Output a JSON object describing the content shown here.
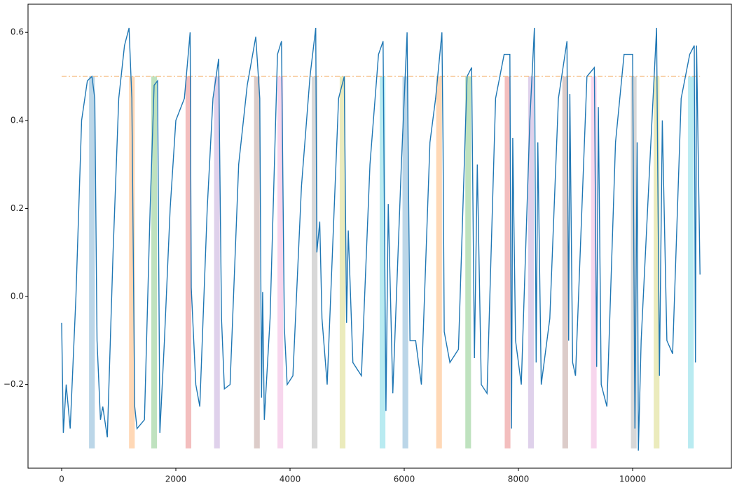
{
  "chart_data": {
    "type": "line",
    "xlim": [
      -589,
      11730
    ],
    "ylim": [
      -0.39,
      0.664
    ],
    "xticks": [
      0,
      2000,
      4000,
      6000,
      8000,
      10000
    ],
    "yticks": [
      {
        "value": -0.2,
        "label": "−0.2"
      },
      {
        "value": 0,
        "label": "0.0"
      },
      {
        "value": 0.2,
        "label": "0.2"
      },
      {
        "value": 0.4,
        "label": "0.4"
      },
      {
        "value": 0.6,
        "label": "0.6"
      }
    ],
    "threshold": {
      "y": 0.5,
      "color": "#f5b97a"
    },
    "span_y": [
      -0.345,
      0.5
    ],
    "spans": [
      {
        "x": [
          480,
          580
        ],
        "color": "#1f77b4"
      },
      {
        "x": [
          1180,
          1280
        ],
        "color": "#ff7f0e"
      },
      {
        "x": [
          1570,
          1670
        ],
        "color": "#2ca02c"
      },
      {
        "x": [
          2170,
          2270
        ],
        "color": "#d62728"
      },
      {
        "x": [
          2670,
          2770
        ],
        "color": "#9467bd"
      },
      {
        "x": [
          3370,
          3470
        ],
        "color": "#8c564b"
      },
      {
        "x": [
          3780,
          3880
        ],
        "color": "#e377c2"
      },
      {
        "x": [
          4380,
          4480
        ],
        "color": "#7f7f7f"
      },
      {
        "x": [
          4870,
          4970
        ],
        "color": "#bcbd22"
      },
      {
        "x": [
          5570,
          5670
        ],
        "color": "#17becf"
      },
      {
        "x": [
          5970,
          6070
        ],
        "color": "#1f77b4"
      },
      {
        "x": [
          6560,
          6660
        ],
        "color": "#ff7f0e"
      },
      {
        "x": [
          7070,
          7170
        ],
        "color": "#2ca02c"
      },
      {
        "x": [
          7760,
          7860
        ],
        "color": "#d62728"
      },
      {
        "x": [
          8170,
          8270
        ],
        "color": "#9467bd"
      },
      {
        "x": [
          8770,
          8870
        ],
        "color": "#8c564b"
      },
      {
        "x": [
          9270,
          9370
        ],
        "color": "#e377c2"
      },
      {
        "x": [
          9970,
          10070
        ],
        "color": "#7f7f7f"
      },
      {
        "x": [
          10370,
          10470
        ],
        "color": "#bcbd22"
      },
      {
        "x": [
          10970,
          11070
        ],
        "color": "#17becf"
      }
    ],
    "series": [
      {
        "color": "#1f77b4",
        "x": [
          0,
          30,
          80,
          150,
          250,
          350,
          450,
          530,
          580,
          620,
          680,
          720,
          800,
          900,
          1000,
          1100,
          1180,
          1230,
          1280,
          1320,
          1450,
          1550,
          1620,
          1680,
          1720,
          1800,
          1900,
          2000,
          2150,
          2250,
          2270,
          2350,
          2420,
          2550,
          2650,
          2750,
          2800,
          2850,
          2950,
          3100,
          3250,
          3400,
          3470,
          3500,
          3520,
          3550,
          3650,
          3780,
          3850,
          3900,
          3950,
          4050,
          4200,
          4350,
          4450,
          4470,
          4520,
          4560,
          4650,
          4850,
          4950,
          4990,
          5020,
          5100,
          5250,
          5400,
          5550,
          5630,
          5680,
          5720,
          5800,
          5950,
          6050,
          6100,
          6200,
          6300,
          6450,
          6550,
          6660,
          6680,
          6700,
          6800,
          6950,
          7100,
          7180,
          7230,
          7280,
          7350,
          7450,
          7600,
          7750,
          7850,
          7880,
          7900,
          7950,
          8050,
          8200,
          8280,
          8310,
          8340,
          8400,
          8550,
          8700,
          8850,
          8880,
          8900,
          8950,
          9000,
          9200,
          9330,
          9370,
          9400,
          9450,
          9550,
          9700,
          9850,
          10000,
          10040,
          10080,
          10100,
          10150,
          10300,
          10420,
          10470,
          10520,
          10600,
          10700,
          10850,
          11000,
          11080,
          11100,
          11120,
          11180
        ],
        "values": [
          -0.06,
          -0.31,
          -0.2,
          -0.3,
          0.0,
          0.4,
          0.49,
          0.5,
          0.45,
          -0.1,
          -0.28,
          -0.25,
          -0.32,
          0.1,
          0.45,
          0.57,
          0.61,
          0.45,
          -0.25,
          -0.3,
          -0.28,
          0.2,
          0.48,
          0.49,
          -0.31,
          -0.1,
          0.2,
          0.4,
          0.45,
          0.6,
          0.02,
          -0.2,
          -0.25,
          0.2,
          0.45,
          0.54,
          -0.05,
          -0.21,
          -0.2,
          0.3,
          0.48,
          0.59,
          0.45,
          -0.23,
          0.01,
          -0.28,
          -0.05,
          0.55,
          0.58,
          -0.07,
          -0.2,
          -0.18,
          0.25,
          0.5,
          0.61,
          0.1,
          0.17,
          -0.05,
          -0.2,
          0.45,
          0.5,
          -0.06,
          0.15,
          -0.15,
          -0.18,
          0.3,
          0.55,
          0.58,
          -0.26,
          0.21,
          -0.22,
          0.3,
          0.6,
          -0.1,
          -0.1,
          -0.2,
          0.35,
          0.45,
          0.6,
          0.35,
          -0.08,
          -0.15,
          -0.12,
          0.5,
          0.52,
          -0.14,
          0.3,
          -0.2,
          -0.22,
          0.45,
          0.55,
          0.55,
          -0.3,
          0.36,
          -0.1,
          -0.2,
          0.4,
          0.61,
          -0.15,
          0.35,
          -0.2,
          -0.05,
          0.45,
          0.58,
          -0.1,
          0.46,
          -0.15,
          -0.18,
          0.5,
          0.52,
          -0.16,
          0.43,
          -0.2,
          -0.25,
          0.35,
          0.55,
          0.55,
          -0.3,
          0.35,
          -0.35,
          -0.1,
          0.3,
          0.61,
          -0.18,
          0.4,
          -0.1,
          -0.13,
          0.45,
          0.55,
          0.57,
          -0.15,
          0.57,
          0.05
        ]
      }
    ]
  }
}
